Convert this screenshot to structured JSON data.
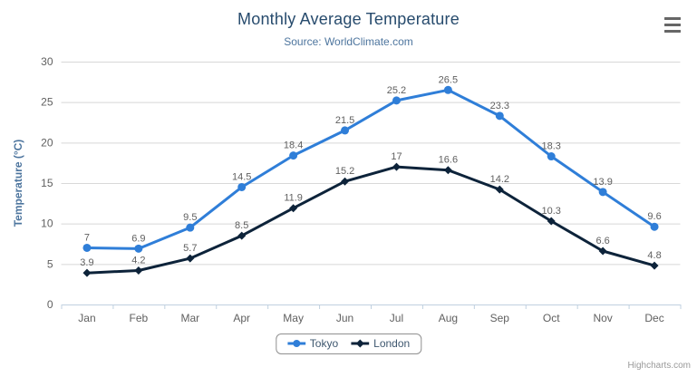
{
  "chart_data": {
    "type": "line",
    "title": "Monthly Average Temperature",
    "subtitle": "Source: WorldClimate.com",
    "categories": [
      "Jan",
      "Feb",
      "Mar",
      "Apr",
      "May",
      "Jun",
      "Jul",
      "Aug",
      "Sep",
      "Oct",
      "Nov",
      "Dec"
    ],
    "xlabel": "",
    "ylabel": "Temperature (°C)",
    "ylim": [
      0,
      30
    ],
    "yticks": [
      0,
      5,
      10,
      15,
      20,
      25,
      30
    ],
    "grid": true,
    "legend_position": "bottom-center",
    "data_labels_visible": true,
    "series": [
      {
        "name": "Tokyo",
        "color": "#2f7ed8",
        "marker": "circle",
        "values": [
          7,
          6.9,
          9.5,
          14.5,
          18.4,
          21.5,
          25.2,
          26.5,
          23.3,
          18.3,
          13.9,
          9.6
        ]
      },
      {
        "name": "London",
        "color": "#0d233a",
        "marker": "diamond",
        "values": [
          3.9,
          4.2,
          5.7,
          8.5,
          11.9,
          15.2,
          17,
          16.6,
          14.2,
          10.3,
          6.6,
          4.8
        ]
      }
    ]
  },
  "credits": {
    "label": "Highcharts.com"
  },
  "theme": {
    "background": "#ffffff",
    "title_color": "#274b6d",
    "subtitle_color": "#4d759e",
    "axis_title_color": "#4d759e",
    "tick_label_color": "#606060",
    "data_label_color": "#606060",
    "grid_color": "#d8d8d8",
    "axis_line_color": "#c0d0e0",
    "legend_border_color": "#909090",
    "legend_text_color": "#3e576f",
    "credits_color": "#999999",
    "menu_icon_color": "#666666"
  }
}
